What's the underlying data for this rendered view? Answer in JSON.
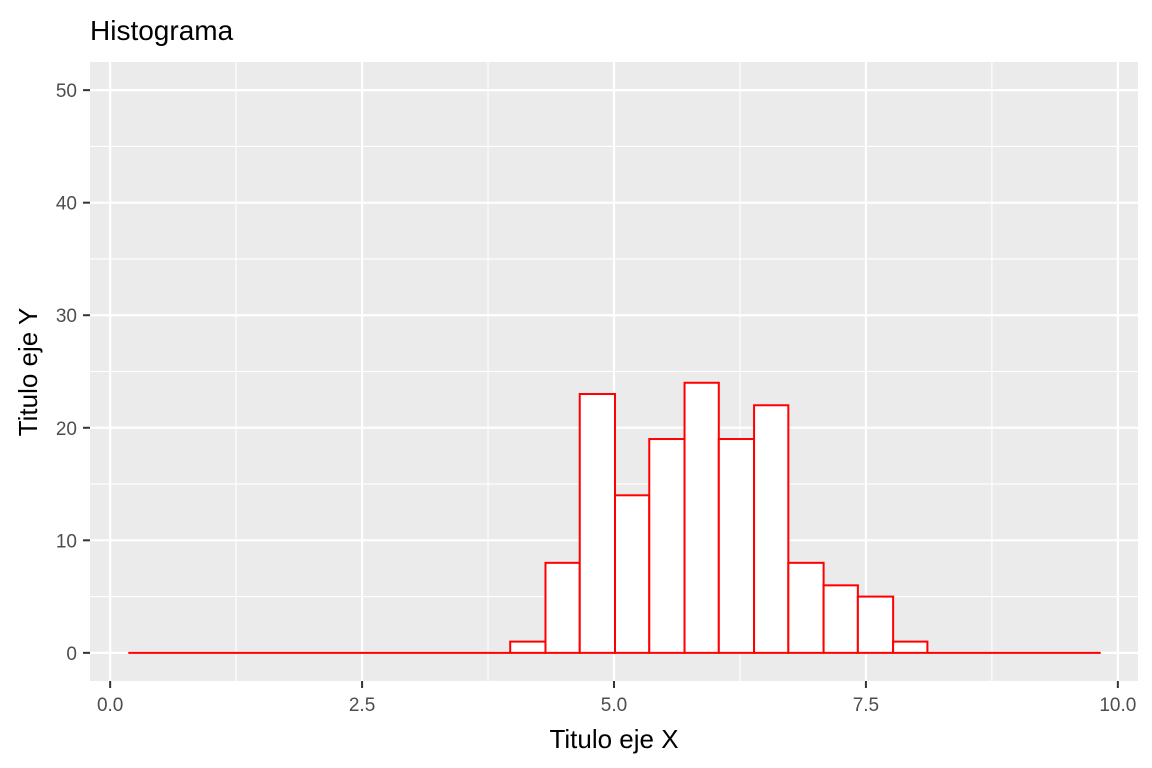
{
  "chart_data": {
    "type": "bar",
    "subtype": "histogram",
    "title": "Histograma",
    "xlabel": "Titulo eje X",
    "ylabel": "Titulo eje Y",
    "xlim": [
      -0.2,
      10.2
    ],
    "ylim": [
      -2.5,
      52.5
    ],
    "x_ticks": [
      0.0,
      2.5,
      5.0,
      7.5,
      10.0
    ],
    "x_tick_labels": [
      "0.0",
      "2.5",
      "5.0",
      "7.5",
      "10.0"
    ],
    "y_ticks": [
      0,
      10,
      20,
      30,
      40,
      50
    ],
    "y_tick_labels": [
      "0",
      "10",
      "20",
      "30",
      "40",
      "50"
    ],
    "grid": true,
    "legend": "none",
    "colors": {
      "panel_background": "#ebebeb",
      "grid": "#ffffff",
      "bar_fill": "#ffffff",
      "bar_outline": "#ff0000",
      "tick_text": "#4d4d4d",
      "axis_text": "#000000"
    },
    "bin_width": 0.345,
    "bins": [
      {
        "x_start": 0.18,
        "x_end": 3.97,
        "count": 0
      },
      {
        "x_start": 3.97,
        "x_end": 4.32,
        "count": 1
      },
      {
        "x_start": 4.32,
        "x_end": 4.66,
        "count": 8
      },
      {
        "x_start": 4.66,
        "x_end": 5.01,
        "count": 23
      },
      {
        "x_start": 5.01,
        "x_end": 5.35,
        "count": 14
      },
      {
        "x_start": 5.35,
        "x_end": 5.7,
        "count": 19
      },
      {
        "x_start": 5.7,
        "x_end": 6.04,
        "count": 24
      },
      {
        "x_start": 6.04,
        "x_end": 6.39,
        "count": 19
      },
      {
        "x_start": 6.39,
        "x_end": 6.73,
        "count": 22
      },
      {
        "x_start": 6.73,
        "x_end": 7.08,
        "count": 8
      },
      {
        "x_start": 7.08,
        "x_end": 7.42,
        "count": 6
      },
      {
        "x_start": 7.42,
        "x_end": 7.77,
        "count": 5
      },
      {
        "x_start": 7.77,
        "x_end": 8.11,
        "count": 1
      },
      {
        "x_start": 8.11,
        "x_end": 9.83,
        "count": 0
      }
    ]
  }
}
